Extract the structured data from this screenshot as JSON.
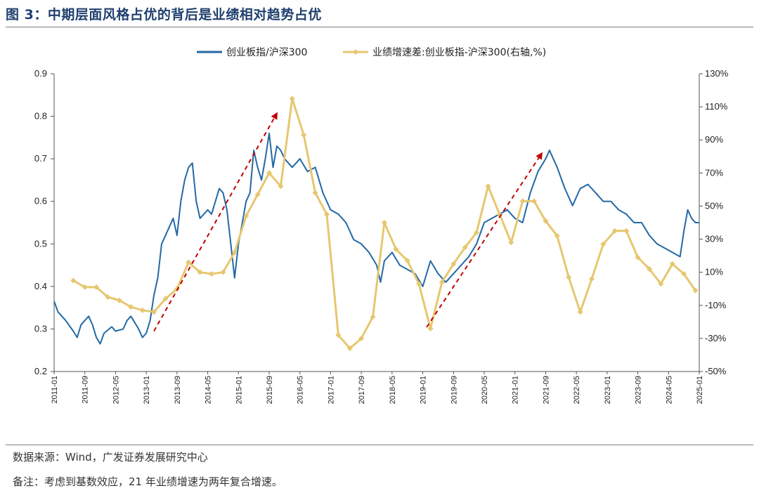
{
  "figure": {
    "title": "图 3：中期层面风格占优的背后是业绩相对趋势占优",
    "source": "数据来源：Wind，广发证券发展研究中心",
    "note": "备注：考虑到基数效应，21 年业绩增速为两年复合增速。"
  },
  "chart_data": {
    "type": "line",
    "title": "",
    "xlabel": "",
    "ylabel": "",
    "x_range": [
      "2011-01",
      "2025-01"
    ],
    "x_ticks": [
      "2011-01",
      "2011-09",
      "2012-05",
      "2013-01",
      "2013-09",
      "2014-05",
      "2015-01",
      "2015-09",
      "2016-05",
      "2017-01",
      "2017-09",
      "2018-05",
      "2019-01",
      "2019-09",
      "2020-05",
      "2021-01",
      "2021-09",
      "2022-05",
      "2023-01",
      "2023-09",
      "2024-05",
      "2025-01"
    ],
    "y_left": {
      "range": [
        0.2,
        0.9
      ],
      "ticks": [
        "0.2",
        "0.3",
        "0.4",
        "0.5",
        "0.6",
        "0.7",
        "0.8",
        "0.9"
      ]
    },
    "y_right": {
      "range": [
        -50,
        130
      ],
      "unit": "%",
      "ticks": [
        "-50%",
        "-30%",
        "-10%",
        "10%",
        "30%",
        "50%",
        "70%",
        "90%",
        "110%",
        "130%"
      ]
    },
    "legend_position": "top-center",
    "series": [
      {
        "name": "创业板指/沪深300",
        "axis": "left",
        "color": "#2369a5",
        "points": [
          [
            "2011-01",
            0.365
          ],
          [
            "2011-02",
            0.34
          ],
          [
            "2011-04",
            0.32
          ],
          [
            "2011-06",
            0.295
          ],
          [
            "2011-07",
            0.28
          ],
          [
            "2011-08",
            0.31
          ],
          [
            "2011-10",
            0.33
          ],
          [
            "2011-11",
            0.31
          ],
          [
            "2011-12",
            0.28
          ],
          [
            "2012-01",
            0.265
          ],
          [
            "2012-02",
            0.29
          ],
          [
            "2012-04",
            0.305
          ],
          [
            "2012-05",
            0.295
          ],
          [
            "2012-07",
            0.3
          ],
          [
            "2012-08",
            0.32
          ],
          [
            "2012-09",
            0.33
          ],
          [
            "2012-11",
            0.3
          ],
          [
            "2012-12",
            0.28
          ],
          [
            "2013-01",
            0.29
          ],
          [
            "2013-02",
            0.32
          ],
          [
            "2013-03",
            0.38
          ],
          [
            "2013-04",
            0.42
          ],
          [
            "2013-05",
            0.5
          ],
          [
            "2013-06",
            0.52
          ],
          [
            "2013-08",
            0.56
          ],
          [
            "2013-09",
            0.52
          ],
          [
            "2013-10",
            0.6
          ],
          [
            "2013-11",
            0.65
          ],
          [
            "2013-12",
            0.68
          ],
          [
            "2014-01",
            0.69
          ],
          [
            "2014-02",
            0.6
          ],
          [
            "2014-03",
            0.56
          ],
          [
            "2014-05",
            0.58
          ],
          [
            "2014-06",
            0.57
          ],
          [
            "2014-07",
            0.6
          ],
          [
            "2014-08",
            0.63
          ],
          [
            "2014-09",
            0.62
          ],
          [
            "2014-10",
            0.58
          ],
          [
            "2014-11",
            0.5
          ],
          [
            "2014-12",
            0.42
          ],
          [
            "2015-01",
            0.5
          ],
          [
            "2015-02",
            0.55
          ],
          [
            "2015-03",
            0.6
          ],
          [
            "2015-04",
            0.62
          ],
          [
            "2015-05",
            0.72
          ],
          [
            "2015-06",
            0.68
          ],
          [
            "2015-07",
            0.65
          ],
          [
            "2015-08",
            0.7
          ],
          [
            "2015-09",
            0.76
          ],
          [
            "2015-10",
            0.68
          ],
          [
            "2015-11",
            0.73
          ],
          [
            "2015-12",
            0.72
          ],
          [
            "2016-01",
            0.7
          ],
          [
            "2016-03",
            0.68
          ],
          [
            "2016-05",
            0.7
          ],
          [
            "2016-07",
            0.67
          ],
          [
            "2016-09",
            0.68
          ],
          [
            "2016-11",
            0.62
          ],
          [
            "2017-01",
            0.58
          ],
          [
            "2017-03",
            0.57
          ],
          [
            "2017-05",
            0.55
          ],
          [
            "2017-07",
            0.51
          ],
          [
            "2017-09",
            0.5
          ],
          [
            "2017-11",
            0.48
          ],
          [
            "2018-01",
            0.45
          ],
          [
            "2018-02",
            0.41
          ],
          [
            "2018-03",
            0.46
          ],
          [
            "2018-05",
            0.48
          ],
          [
            "2018-07",
            0.45
          ],
          [
            "2018-09",
            0.44
          ],
          [
            "2018-11",
            0.43
          ],
          [
            "2019-01",
            0.4
          ],
          [
            "2019-03",
            0.46
          ],
          [
            "2019-05",
            0.43
          ],
          [
            "2019-07",
            0.41
          ],
          [
            "2019-09",
            0.43
          ],
          [
            "2019-11",
            0.45
          ],
          [
            "2020-01",
            0.47
          ],
          [
            "2020-03",
            0.5
          ],
          [
            "2020-05",
            0.55
          ],
          [
            "2020-07",
            0.56
          ],
          [
            "2020-09",
            0.57
          ],
          [
            "2020-11",
            0.58
          ],
          [
            "2021-01",
            0.56
          ],
          [
            "2021-03",
            0.55
          ],
          [
            "2021-05",
            0.62
          ],
          [
            "2021-07",
            0.67
          ],
          [
            "2021-09",
            0.7
          ],
          [
            "2021-10",
            0.72
          ],
          [
            "2021-12",
            0.68
          ],
          [
            "2022-02",
            0.63
          ],
          [
            "2022-04",
            0.59
          ],
          [
            "2022-06",
            0.63
          ],
          [
            "2022-08",
            0.64
          ],
          [
            "2022-10",
            0.62
          ],
          [
            "2022-12",
            0.6
          ],
          [
            "2023-02",
            0.6
          ],
          [
            "2023-04",
            0.58
          ],
          [
            "2023-06",
            0.57
          ],
          [
            "2023-08",
            0.55
          ],
          [
            "2023-10",
            0.55
          ],
          [
            "2023-12",
            0.52
          ],
          [
            "2024-02",
            0.5
          ],
          [
            "2024-04",
            0.49
          ],
          [
            "2024-06",
            0.48
          ],
          [
            "2024-08",
            0.47
          ],
          [
            "2024-09",
            0.53
          ],
          [
            "2024-10",
            0.58
          ],
          [
            "2024-11",
            0.56
          ],
          [
            "2024-12",
            0.55
          ],
          [
            "2025-01",
            0.55
          ]
        ]
      },
      {
        "name": "业绩增速差:创业板指-沪深300(右轴,%)",
        "axis": "right",
        "color": "#e6c76f",
        "points": [
          [
            "2011-06",
            5
          ],
          [
            "2011-09",
            1
          ],
          [
            "2011-12",
            1
          ],
          [
            "2012-03",
            -5
          ],
          [
            "2012-06",
            -7
          ],
          [
            "2012-09",
            -11
          ],
          [
            "2012-12",
            -13
          ],
          [
            "2013-03",
            -14
          ],
          [
            "2013-06",
            -6
          ],
          [
            "2013-09",
            0
          ],
          [
            "2013-12",
            16
          ],
          [
            "2014-03",
            10
          ],
          [
            "2014-06",
            9
          ],
          [
            "2014-09",
            10
          ],
          [
            "2014-12",
            22
          ],
          [
            "2015-03",
            44
          ],
          [
            "2015-06",
            57
          ],
          [
            "2015-09",
            70
          ],
          [
            "2015-12",
            62
          ],
          [
            "2016-03",
            115
          ],
          [
            "2016-06",
            93
          ],
          [
            "2016-09",
            58
          ],
          [
            "2016-12",
            45
          ],
          [
            "2017-03",
            -28
          ],
          [
            "2017-06",
            -36
          ],
          [
            "2017-09",
            -30
          ],
          [
            "2017-12",
            -17
          ],
          [
            "2018-03",
            40
          ],
          [
            "2018-06",
            24
          ],
          [
            "2018-09",
            17
          ],
          [
            "2018-12",
            3
          ],
          [
            "2019-03",
            -24
          ],
          [
            "2019-06",
            4
          ],
          [
            "2019-09",
            15
          ],
          [
            "2019-12",
            25
          ],
          [
            "2020-03",
            34
          ],
          [
            "2020-06",
            62
          ],
          [
            "2020-09",
            45
          ],
          [
            "2020-12",
            28
          ],
          [
            "2021-03",
            53
          ],
          [
            "2021-06",
            53
          ],
          [
            "2021-09",
            41
          ],
          [
            "2021-12",
            32
          ],
          [
            "2022-03",
            7
          ],
          [
            "2022-06",
            -14
          ],
          [
            "2022-09",
            6
          ],
          [
            "2022-12",
            27
          ],
          [
            "2023-03",
            35
          ],
          [
            "2023-06",
            35
          ],
          [
            "2023-09",
            19
          ],
          [
            "2023-12",
            12
          ],
          [
            "2024-03",
            3
          ],
          [
            "2024-06",
            15
          ],
          [
            "2024-09",
            9
          ],
          [
            "2024-12",
            -1
          ]
        ]
      }
    ],
    "annotations": [
      {
        "kind": "dashed-arrow",
        "color": "#c00000",
        "from": [
          "2013-03",
          0.295
        ],
        "to": [
          "2015-11",
          0.807
        ]
      },
      {
        "kind": "dashed-arrow",
        "color": "#c00000",
        "from": [
          "2019-02",
          0.304
        ],
        "to": [
          "2021-08",
          0.713
        ]
      }
    ]
  }
}
